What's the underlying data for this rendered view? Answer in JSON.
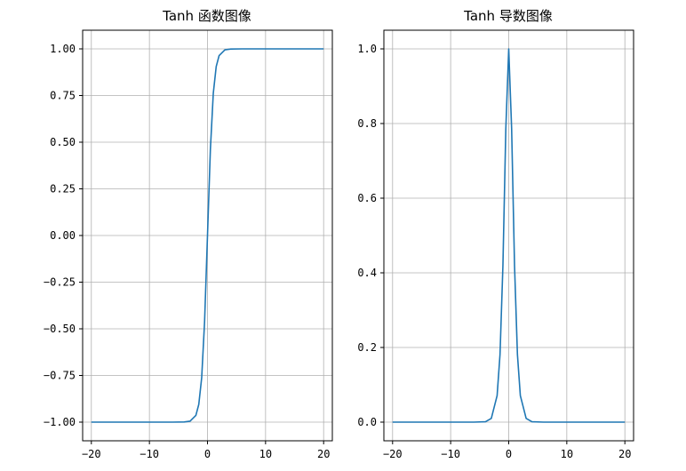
{
  "chart_data": [
    {
      "type": "line",
      "title": "Tanh 函数图像",
      "xlabel": "",
      "ylabel": "",
      "xlim": [
        -21.5,
        21.5
      ],
      "ylim": [
        -1.1,
        1.1
      ],
      "grid": true,
      "x_ticks": [
        -20,
        -10,
        0,
        10,
        20
      ],
      "x_tick_labels": [
        "−20",
        "−10",
        "0",
        "10",
        "20"
      ],
      "y_ticks": [
        1.0,
        0.75,
        0.5,
        0.25,
        0.0,
        -0.25,
        -0.5,
        -0.75,
        -1.0
      ],
      "y_tick_labels": [
        "1.00",
        "0.75",
        "0.50",
        "0.25",
        "0.00",
        "−0.25",
        "−0.50",
        "−0.75",
        "−1.00"
      ],
      "series": [
        {
          "x": [
            -20,
            -10,
            -6,
            -4,
            -3,
            -2,
            -1.5,
            -1,
            -0.5,
            0,
            0.5,
            1,
            1.5,
            2,
            3,
            4,
            6,
            10,
            20
          ],
          "values": [
            -1.0,
            -1.0,
            -1.0,
            -0.999,
            -0.995,
            -0.964,
            -0.905,
            -0.762,
            -0.462,
            0.0,
            0.462,
            0.762,
            0.905,
            0.964,
            0.995,
            0.999,
            1.0,
            1.0,
            1.0
          ]
        }
      ],
      "line_color": "#1f77b4"
    },
    {
      "type": "line",
      "title": "Tanh 导数图像",
      "xlabel": "",
      "ylabel": "",
      "xlim": [
        -21.5,
        21.5
      ],
      "ylim": [
        -0.05,
        1.05
      ],
      "grid": true,
      "x_ticks": [
        -20,
        -10,
        0,
        10,
        20
      ],
      "x_tick_labels": [
        "−20",
        "−10",
        "0",
        "10",
        "20"
      ],
      "y_ticks": [
        1.0,
        0.8,
        0.6,
        0.4,
        0.2,
        0.0
      ],
      "y_tick_labels": [
        "1.0",
        "0.8",
        "0.6",
        "0.4",
        "0.2",
        "0.0"
      ],
      "series": [
        {
          "x": [
            -20,
            -10,
            -6,
            -4,
            -3,
            -2,
            -1.5,
            -1,
            -0.5,
            0,
            0.5,
            1,
            1.5,
            2,
            3,
            4,
            6,
            10,
            20
          ],
          "values": [
            0.0,
            0.0,
            0.0,
            0.001,
            0.01,
            0.071,
            0.181,
            0.42,
            0.786,
            1.0,
            0.786,
            0.42,
            0.181,
            0.071,
            0.01,
            0.001,
            0.0,
            0.0,
            0.0
          ]
        }
      ],
      "line_color": "#1f77b4"
    }
  ]
}
